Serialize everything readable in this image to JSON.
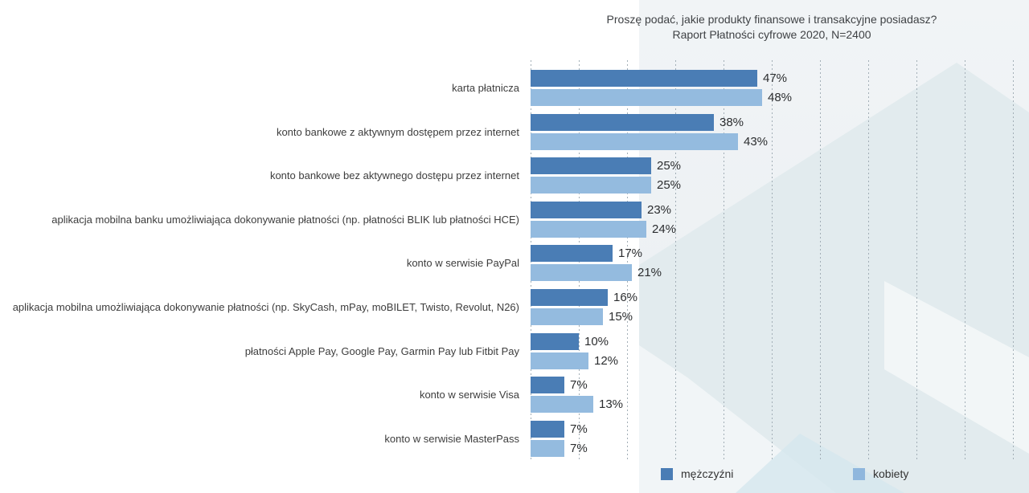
{
  "title": {
    "line1": "Proszę podać, jakie produkty finansowe i transakcyjne posiadasz?",
    "line2": "Raport Płatności cyfrowe 2020, N=2400"
  },
  "legend": {
    "men_label": "mężczyźni",
    "women_label": "kobiety"
  },
  "colors": {
    "men_bar": "#4a7db5",
    "women_bar": "#94bbdf",
    "panel_background": "#eef2f5",
    "gridline": "#a2aeb6"
  },
  "chart_data": {
    "type": "bar",
    "orientation": "horizontal",
    "title": "Proszę podać, jakie produkty finansowe i transakcyjne posiadasz? Raport Płatności cyfrowe 2020, N=2400",
    "categories": [
      "karta płatnicza",
      "konto bankowe z aktywnym dostępem przez internet",
      "konto bankowe bez aktywnego dostępu przez internet",
      "aplikacja mobilna banku umożliwiająca dokonywanie płatności (np. płatności BLIK lub płatności HCE)",
      "konto w serwisie PayPal",
      "aplikacja mobilna umożliwiająca dokonywanie płatności (np. SkyCash, mPay, moBILET, Twisto, Revolut, N26)",
      "płatności Apple Pay, Google Pay, Garmin Pay lub Fitbit Pay",
      "konto w serwisie Visa",
      "konto w serwisie MasterPass"
    ],
    "series": [
      {
        "name": "mężczyźni",
        "values": [
          47,
          38,
          25,
          23,
          17,
          16,
          10,
          7,
          7
        ]
      },
      {
        "name": "kobiety",
        "values": [
          48,
          43,
          25,
          24,
          21,
          15,
          12,
          13,
          7
        ]
      }
    ],
    "value_suffix": "%",
    "xlim": [
      0,
      100
    ],
    "grid": "dashed vertical lines every 10%",
    "legend_position": "bottom"
  }
}
